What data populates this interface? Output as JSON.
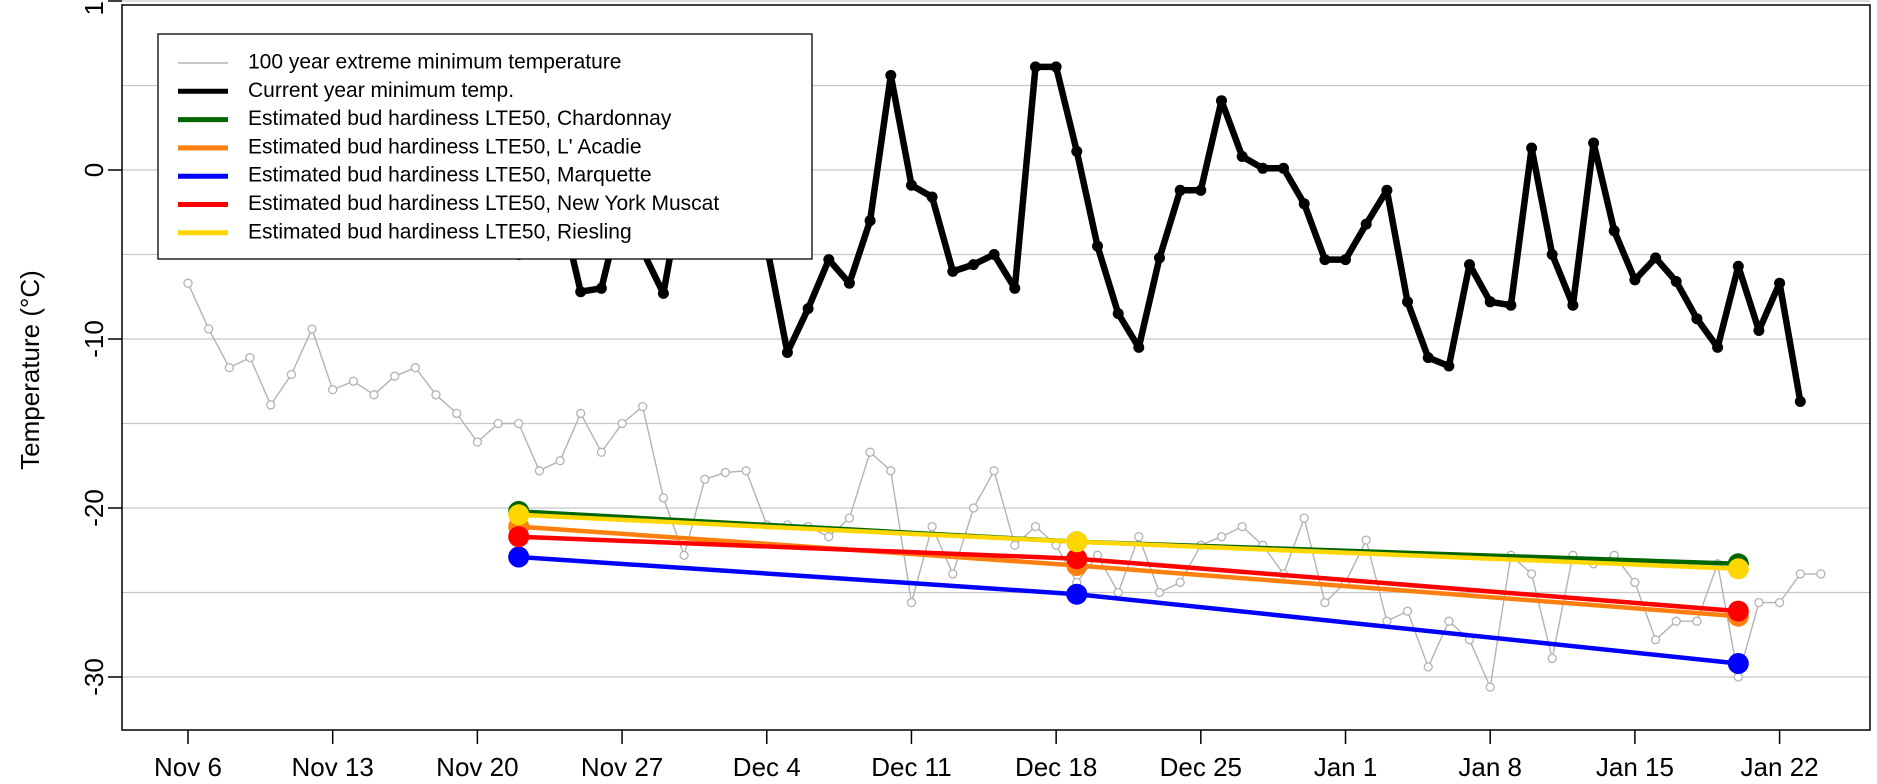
{
  "chart_data": {
    "type": "line",
    "ylabel": "Temperature (°C)",
    "ylim": [
      -32,
      10.5
    ],
    "yticks": [
      10,
      0,
      -10,
      -20,
      -30
    ],
    "ytick_labels": [
      "10",
      "0",
      "-10",
      "-20",
      "-30"
    ],
    "xaxis_origin": "Nov 6",
    "xlim_days": [
      -1,
      79
    ],
    "xtick_days": [
      0,
      7,
      14,
      21,
      28,
      35,
      42,
      49,
      56,
      63,
      70,
      77
    ],
    "xtick_labels": [
      "Nov 6",
      "Nov 13",
      "Nov 20",
      "Nov 27",
      "Dec 4",
      "Dec 11",
      "Dec 18",
      "Dec 25",
      "Jan 1",
      "Jan 8",
      "Jan 15",
      "Jan 22"
    ],
    "grid": "horizontal",
    "legend_position": "top-left",
    "series": [
      {
        "name": "100 year extreme minimum temperature",
        "color": "#b3b3b3",
        "style": "thin-line-open-points",
        "x": [
          0,
          1,
          2,
          3,
          4,
          5,
          6,
          7,
          8,
          9,
          10,
          11,
          12,
          13,
          14,
          15,
          16,
          17,
          18,
          19,
          20,
          21,
          22,
          23,
          24,
          25,
          26,
          27,
          28,
          29,
          30,
          31,
          32,
          33,
          34,
          35,
          36,
          37,
          38,
          39,
          40,
          41,
          42,
          43,
          44,
          45,
          46,
          47,
          48,
          49,
          50,
          51,
          52,
          53,
          54,
          55,
          56,
          57,
          58,
          59,
          60,
          61,
          62,
          63,
          64,
          65,
          66,
          67,
          68,
          69,
          70,
          71,
          72,
          73,
          74,
          75,
          76,
          77,
          78,
          79
        ],
        "y": [
          -6.7,
          -9.4,
          -11.7,
          -11.1,
          -13.9,
          -12.1,
          -9.4,
          -13.0,
          -12.5,
          -13.3,
          -12.2,
          -11.7,
          -13.3,
          -14.4,
          -16.1,
          -15.0,
          -15.0,
          -17.8,
          -17.2,
          -14.4,
          -16.7,
          -15.0,
          -14.0,
          -19.4,
          -22.8,
          -18.3,
          -17.9,
          -17.8,
          -21.0,
          -21.0,
          -21.1,
          -21.7,
          -20.6,
          -16.7,
          -17.8,
          -25.6,
          -21.1,
          -23.9,
          -20.0,
          -17.8,
          -22.2,
          -21.1,
          -22.2,
          -24.4,
          -22.8,
          -25.0,
          -21.7,
          -25.0,
          -24.4,
          -22.2,
          -21.7,
          -21.1,
          -22.2,
          -23.9,
          -20.6,
          -25.6,
          -24.4,
          -21.9,
          -26.7,
          -26.1,
          -29.4,
          -26.7,
          -27.8,
          -30.6,
          -22.8,
          -23.9,
          -28.9,
          -22.8,
          -23.3,
          -22.8,
          -24.4,
          -27.8,
          -26.7,
          -26.7,
          -23.3,
          -30.0,
          -25.6,
          -25.6,
          -23.9,
          -23.9
        ]
      },
      {
        "name": "Current year minimum temp.",
        "color": "#000000",
        "style": "thick-line-points",
        "x": [
          0,
          1,
          2,
          3,
          4,
          5,
          6,
          7,
          8,
          9,
          10,
          11,
          12,
          13,
          14,
          15,
          16,
          17,
          18,
          19,
          20,
          21,
          22,
          23,
          24,
          25,
          26,
          27,
          28,
          29,
          30,
          31,
          32,
          33,
          34,
          35,
          36,
          37,
          38,
          39,
          40,
          41,
          42,
          43,
          44,
          45,
          46,
          47,
          48,
          49,
          50,
          51,
          52,
          53,
          54,
          55,
          56,
          57,
          58,
          59,
          60,
          61,
          62,
          63,
          64,
          65,
          66,
          67,
          68,
          69,
          70,
          71,
          72,
          73,
          74,
          75,
          76,
          77,
          78
        ],
        "y": [
          -1.5,
          -2.0,
          -2.5,
          -1.0,
          -1.5,
          -2.0,
          -2.5,
          -3.0,
          -3.2,
          -2.0,
          -1.5,
          -1.0,
          -2.0,
          -2.5,
          -3.0,
          -4.8,
          -5.0,
          -1.5,
          -2.0,
          -7.2,
          -7.0,
          -2.0,
          -4.8,
          -7.3,
          -0.5,
          -1.0,
          -2.0,
          -1.5,
          -4.5,
          -10.8,
          -8.2,
          -5.3,
          -6.7,
          -3.0,
          5.6,
          -0.9,
          -1.6,
          -6.0,
          -5.6,
          -5.0,
          -7.0,
          6.1,
          6.1,
          1.1,
          -4.5,
          -8.5,
          -10.5,
          -5.2,
          -1.2,
          -1.2,
          4.1,
          0.8,
          0.1,
          0.1,
          -2.0,
          -5.3,
          -5.3,
          -3.2,
          -1.2,
          -7.8,
          -11.1,
          -11.6,
          -5.6,
          -7.8,
          -8.0,
          1.3,
          -5.0,
          -8.0,
          1.6,
          -3.6,
          -6.5,
          -5.2,
          -6.6,
          -8.8,
          -10.5,
          -5.7,
          -9.5,
          -6.7,
          -13.7
        ]
      },
      {
        "name": "Estimated bud hardiness LTE50, Chardonnay",
        "color": "#006400",
        "style": "line-big-points",
        "x": [
          16,
          43,
          75
        ],
        "y": [
          -20.2,
          -22.0,
          -23.3
        ]
      },
      {
        "name": "Estimated bud hardiness LTE50, L' Acadie",
        "color": "#ff7f0e",
        "style": "line-big-points",
        "x": [
          16,
          43,
          75
        ],
        "y": [
          -21.1,
          -23.4,
          -26.4
        ]
      },
      {
        "name": "Estimated bud hardiness LTE50, Marquette",
        "color": "#0000ff",
        "style": "line-big-points",
        "x": [
          16,
          43,
          75
        ],
        "y": [
          -22.9,
          -25.1,
          -29.2
        ]
      },
      {
        "name": "Estimated bud hardiness LTE50, New York Muscat",
        "color": "#ff0000",
        "style": "line-big-points",
        "x": [
          16,
          43,
          75
        ],
        "y": [
          -21.7,
          -23.0,
          -26.1
        ]
      },
      {
        "name": "Estimated bud hardiness LTE50, Riesling",
        "color": "#ffd700",
        "style": "line-big-points",
        "x": [
          16,
          43,
          75
        ],
        "y": [
          -20.4,
          -22.0,
          -23.6
        ]
      }
    ]
  }
}
